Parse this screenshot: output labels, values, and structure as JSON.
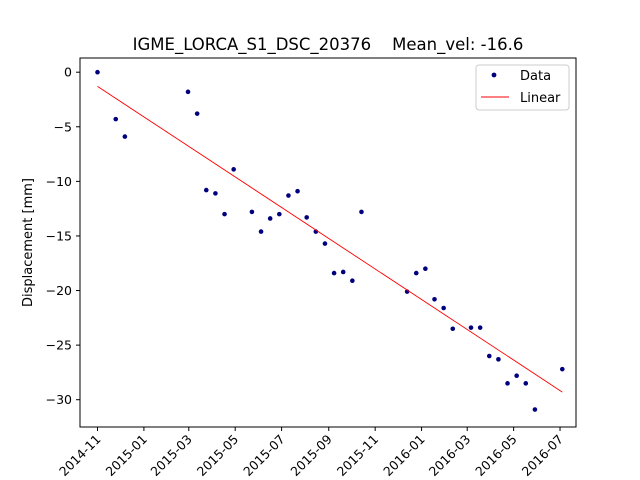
{
  "chart_data": {
    "type": "scatter",
    "title": "IGME_LORCA_S1_DSC_20376    Mean_vel: -16.6",
    "xlabel": "",
    "ylabel": "Displacement [mm]",
    "xlim": [
      "2014-10-09",
      "2016-07-22"
    ],
    "ylim": [
      -32.5,
      1.3
    ],
    "grid": false,
    "legend_position": "top-right",
    "xticks": [
      "2014-11",
      "2015-01",
      "2015-03",
      "2015-05",
      "2015-07",
      "2015-09",
      "2015-11",
      "2016-01",
      "2016-03",
      "2016-05",
      "2016-07"
    ],
    "yticks": [
      0,
      -5,
      -10,
      -15,
      -20,
      -25,
      -30
    ],
    "series": [
      {
        "name": "Data",
        "kind": "points",
        "color": "#00007f",
        "x": [
          "2014-11-01",
          "2014-11-25",
          "2014-12-07",
          "2015-02-28",
          "2015-03-12",
          "2015-03-24",
          "2015-04-05",
          "2015-04-17",
          "2015-04-29",
          "2015-05-23",
          "2015-06-04",
          "2015-06-16",
          "2015-06-28",
          "2015-07-10",
          "2015-07-22",
          "2015-08-03",
          "2015-08-15",
          "2015-08-27",
          "2015-09-08",
          "2015-09-20",
          "2015-10-02",
          "2015-10-14",
          "2015-12-13",
          "2015-12-25",
          "2016-01-06",
          "2016-01-18",
          "2016-01-30",
          "2016-02-11",
          "2016-03-06",
          "2016-03-18",
          "2016-03-30",
          "2016-04-11",
          "2016-04-23",
          "2016-05-05",
          "2016-05-17",
          "2016-05-29",
          "2016-07-04"
        ],
        "y": [
          0.0,
          -4.3,
          -5.9,
          -1.8,
          -3.8,
          -10.8,
          -11.1,
          -13.0,
          -8.9,
          -12.8,
          -14.6,
          -13.4,
          -13.0,
          -11.3,
          -10.9,
          -13.3,
          -14.6,
          -15.7,
          -18.4,
          -18.3,
          -19.1,
          -12.8,
          -20.1,
          -18.4,
          -18.0,
          -20.8,
          -21.6,
          -23.5,
          -23.4,
          -23.4,
          -26.0,
          -26.3,
          -28.5,
          -27.8,
          -28.5,
          -30.9,
          -27.2
        ]
      },
      {
        "name": "Linear",
        "kind": "line",
        "color": "#ff0000",
        "x": [
          "2014-11-01",
          "2016-07-04"
        ],
        "y": [
          -1.3,
          -29.3
        ]
      }
    ]
  }
}
